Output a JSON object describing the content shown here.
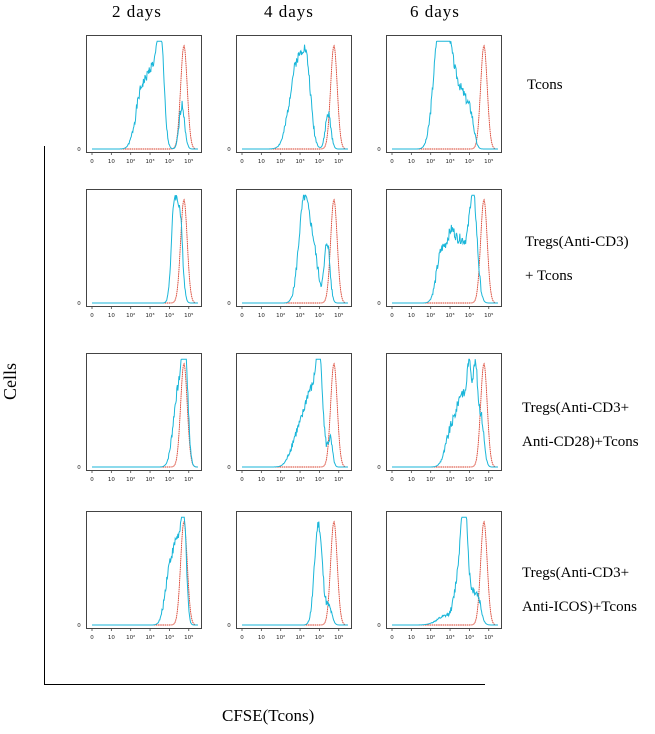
{
  "x_axis_title": "CFSE(Tcons)",
  "y_axis_title": "Cells",
  "chart_data": {
    "type": "histogram-grid",
    "title": "",
    "xlabel": "CFSE(Tcons)",
    "ylabel": "Cells",
    "x_scale": "log",
    "xlim": [
      1,
      300000
    ],
    "x_ticks": [
      {
        "value": 1,
        "label": "0"
      },
      {
        "value": 10,
        "label": "10"
      },
      {
        "value": 100,
        "label": "10²"
      },
      {
        "value": 1000,
        "label": "10³"
      },
      {
        "value": 10000,
        "label": "10⁴"
      },
      {
        "value": 100000,
        "label": "10⁵"
      }
    ],
    "y_tick_label": "0",
    "columns": [
      "2 days",
      "4 days",
      "6 days"
    ],
    "rows": [
      "Tcons",
      "Tregs(Anti-CD3)\n+ Tcons",
      "Tregs(Anti-CD3+\nAnti-CD28)+Tcons",
      "Tregs(Anti-CD3+\nAnti-ICOS)+Tcons"
    ],
    "series_colors": {
      "proliferating": "#1ab6d9",
      "reference": "#d9402e"
    },
    "reference_peak": {
      "center_log10": 4.75,
      "width": 0.17,
      "height": 0.94
    },
    "panels": [
      [
        {
          "cyan": [
            [
              2.55,
              0.3,
              0.5
            ],
            [
              3.15,
              0.28,
              0.65
            ],
            [
              3.55,
              0.17,
              0.88
            ],
            [
              4.65,
              0.14,
              0.4
            ]
          ],
          "seed": 1
        },
        {
          "cyan": [
            [
              2.85,
              0.38,
              0.78
            ],
            [
              3.35,
              0.22,
              0.52
            ],
            [
              4.45,
              0.14,
              0.32
            ]
          ],
          "seed": 2
        },
        {
          "cyan": [
            [
              2.35,
              0.28,
              0.7
            ],
            [
              2.75,
              0.3,
              0.92
            ],
            [
              3.35,
              0.35,
              0.52
            ],
            [
              4.1,
              0.16,
              0.22
            ],
            [
              3.8,
              0.2,
              0.2
            ]
          ],
          "seed": 3
        }
      ],
      [
        {
          "cyan": [
            [
              4.25,
              0.15,
              0.88
            ],
            [
              4.55,
              0.14,
              0.72
            ]
          ],
          "seed": 4
        },
        {
          "cyan": [
            [
              3.2,
              0.27,
              0.9
            ],
            [
              3.7,
              0.25,
              0.42
            ],
            [
              4.4,
              0.14,
              0.55
            ]
          ],
          "seed": 5
        },
        {
          "cyan": [
            [
              2.55,
              0.25,
              0.45
            ],
            [
              3.05,
              0.22,
              0.48
            ],
            [
              3.6,
              0.32,
              0.55
            ],
            [
              4.2,
              0.2,
              0.92
            ]
          ],
          "seed": 6
        }
      ],
      [
        {
          "cyan": [
            [
              4.45,
              0.25,
              0.68
            ],
            [
              4.8,
              0.15,
              0.95
            ]
          ],
          "seed": 7
        },
        {
          "cyan": [
            [
              2.9,
              0.35,
              0.3
            ],
            [
              3.55,
              0.3,
              0.62
            ],
            [
              4.0,
              0.18,
              0.88
            ],
            [
              4.55,
              0.12,
              0.25
            ]
          ],
          "seed": 8
        },
        {
          "cyan": [
            [
              3.1,
              0.3,
              0.35
            ],
            [
              3.65,
              0.25,
              0.6
            ],
            [
              4.0,
              0.12,
              0.72
            ],
            [
              4.3,
              0.12,
              0.85
            ],
            [
              4.6,
              0.15,
              0.45
            ]
          ],
          "seed": 9
        }
      ],
      [
        {
          "cyan": [
            [
              4.05,
              0.25,
              0.55
            ],
            [
              4.45,
              0.18,
              0.6
            ],
            [
              4.75,
              0.13,
              0.88
            ]
          ],
          "seed": 10
        },
        {
          "cyan": [
            [
              3.95,
              0.2,
              0.92
            ],
            [
              4.5,
              0.15,
              0.15
            ]
          ],
          "seed": 11
        },
        {
          "cyan": [
            [
              2.8,
              0.45,
              0.08
            ],
            [
              3.55,
              0.25,
              0.55
            ],
            [
              3.75,
              0.14,
              0.85
            ],
            [
              4.2,
              0.25,
              0.28
            ],
            [
              4.5,
              0.14,
              0.1
            ]
          ],
          "seed": 12
        }
      ]
    ]
  }
}
